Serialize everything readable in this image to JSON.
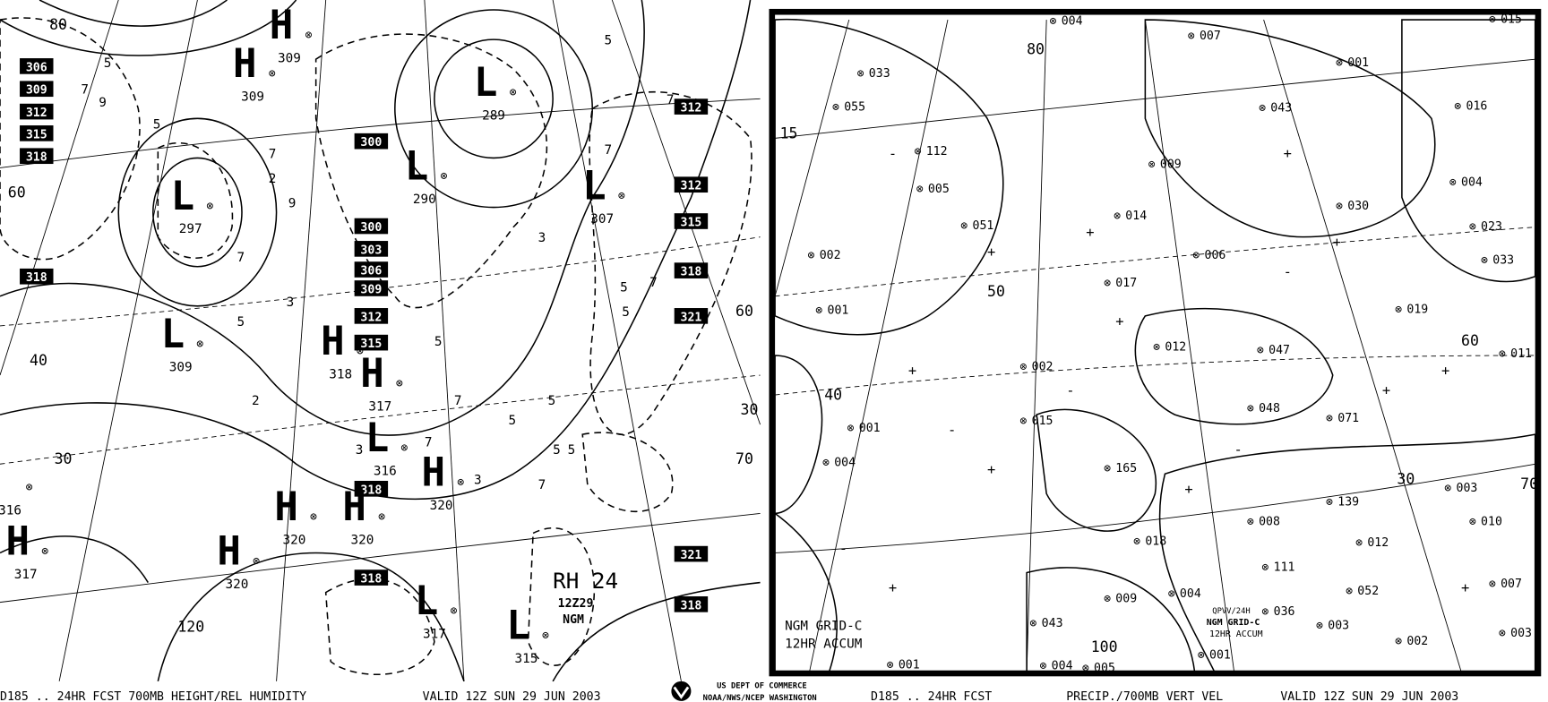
{
  "left_panel": {
    "caption": "D185 .. 24HR FCST 700MB HEIGHT/REL HUMIDITY",
    "valid": "VALID 12Z SUN 29 JUN 2003",
    "legend": {
      "title": "RH 24",
      "time": "12Z29",
      "model": "NGM"
    },
    "height_boxes": [
      "306",
      "309",
      "312",
      "315",
      "318",
      "318",
      "300",
      "300",
      "303",
      "306",
      "309",
      "312",
      "315",
      "318",
      "318",
      "312",
      "312",
      "315",
      "318",
      "321",
      "321",
      "318"
    ],
    "centers": [
      {
        "type": "H",
        "value": "309"
      },
      {
        "type": "H",
        "value": "309"
      },
      {
        "type": "L",
        "value": "289"
      },
      {
        "type": "L",
        "value": "290"
      },
      {
        "type": "L",
        "value": "307"
      },
      {
        "type": "L",
        "value": "297"
      },
      {
        "type": "L",
        "value": "309"
      },
      {
        "type": "H",
        "value": "318"
      },
      {
        "type": "H",
        "value": "317"
      },
      {
        "type": "L",
        "value": "316"
      },
      {
        "type": "H",
        "value": "320"
      },
      {
        "type": "H",
        "value": "320"
      },
      {
        "type": "H",
        "value": "320"
      },
      {
        "type": "H",
        "value": "320"
      },
      {
        "type": "H",
        "value": "317"
      },
      {
        "type": "L",
        "value": "317"
      },
      {
        "type": "L",
        "value": "315"
      },
      {
        "type": "L",
        "value": "316"
      }
    ],
    "rh_labels": [
      "5",
      "9",
      "7",
      "5",
      "2",
      "7",
      "9",
      "7",
      "5",
      "3",
      "2",
      "5",
      "7",
      "5",
      "3",
      "5",
      "7",
      "5",
      "7",
      "5",
      "3",
      "5",
      "7",
      "7",
      "5",
      "3",
      "7",
      "5"
    ],
    "lat_labels": [
      "80",
      "60",
      "40",
      "30",
      "60",
      "30",
      "70",
      "120"
    ]
  },
  "right_panel": {
    "caption": "D185 .. 24HR FCST",
    "title": "PRECIP./700MB VERT VEL",
    "valid": "VALID 12Z SUN 29 JUN 2003",
    "legend": {
      "line1": "NGM GRID-C",
      "line2": "12HR ACCUM"
    },
    "legend2": {
      "line0": "QPVV/24H",
      "line1": "NGM GRID-C",
      "line2": "12HR ACCUM"
    },
    "precip_values": [
      "004",
      "007",
      "015",
      "001",
      "043",
      "016",
      "033",
      "055",
      "112",
      "009",
      "005",
      "004",
      "014",
      "030",
      "051",
      "006",
      "023",
      "002",
      "033",
      "017",
      "001",
      "019",
      "012",
      "047",
      "011",
      "002",
      "048",
      "071",
      "015",
      "001",
      "004",
      "165",
      "003",
      "139",
      "008",
      "010",
      "018",
      "012",
      "111",
      "007",
      "052",
      "009",
      "004",
      "036",
      "003",
      "003",
      "043",
      "002",
      "001",
      "001",
      "004",
      "005"
    ],
    "contour_labels": [
      "80",
      "60",
      "50",
      "40",
      "30",
      "70",
      "100",
      "15"
    ]
  },
  "agency": {
    "line1": "US DEPT OF COMMERCE",
    "line2": "NOAA/NWS/NCEP WASHINGTON",
    "logo": "noaa-logo"
  }
}
